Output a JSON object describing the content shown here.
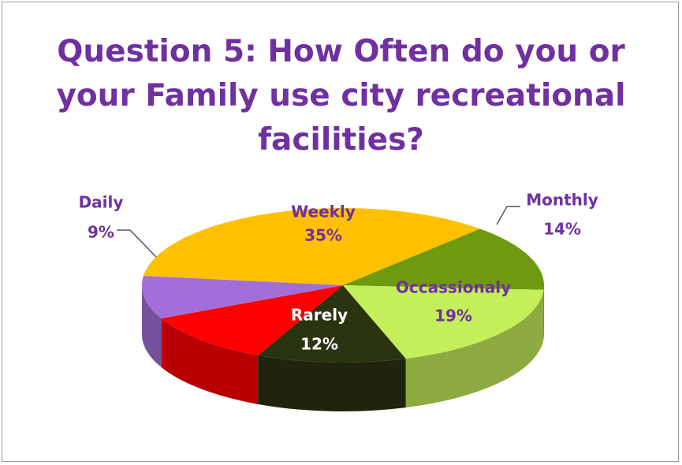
{
  "chart_data": {
    "type": "pie",
    "title": "Question 5: How Often do you or your Family use city recreational facilities?",
    "categories": [
      "Weekly",
      "Monthly",
      "Occassionaly",
      "Rarely",
      null,
      "Daily"
    ],
    "values": [
      35,
      14,
      19,
      12,
      11,
      9
    ],
    "value_labels": [
      "35%",
      "14%",
      "19%",
      "12%",
      null,
      "9%"
    ],
    "colors": [
      "#ffc000",
      "#6e9a10",
      "#c4ee5a",
      "#2b3410",
      "#ff0000",
      "#a26fd9"
    ]
  }
}
